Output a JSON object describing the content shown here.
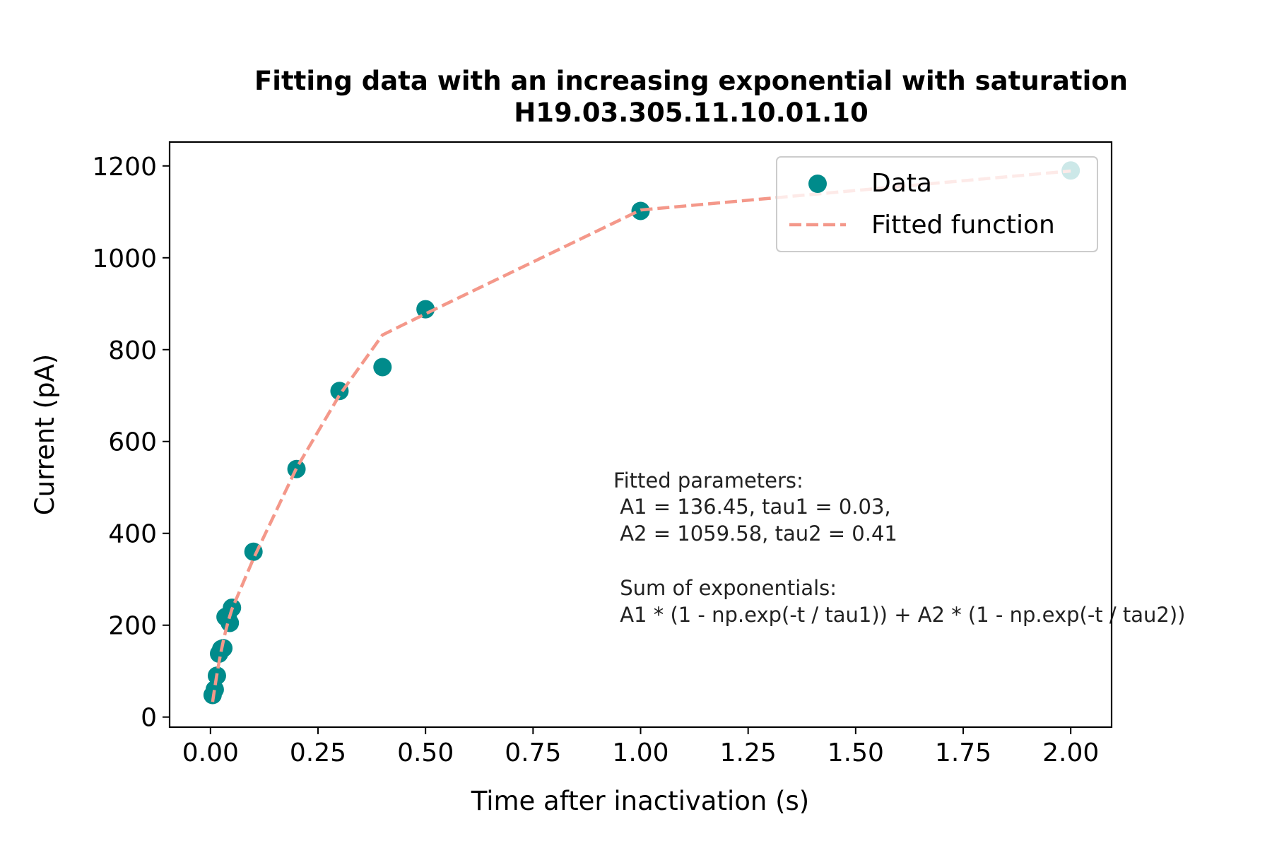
{
  "chart_data": {
    "type": "scatter",
    "title": "Fitting data with an increasing exponential with saturation",
    "subtitle": "H19.03.305.11.10.01.10",
    "xlabel": "Time after inactivation (s)",
    "ylabel": "Current (pA)",
    "xlim": [
      -0.095,
      2.095
    ],
    "ylim": [
      -22,
      1252
    ],
    "xticks": [
      0.0,
      0.25,
      0.5,
      0.75,
      1.0,
      1.25,
      1.5,
      1.75,
      2.0
    ],
    "xtick_labels": [
      "0.00",
      "0.25",
      "0.50",
      "0.75",
      "1.00",
      "1.25",
      "1.50",
      "1.75",
      "2.00"
    ],
    "yticks": [
      0,
      200,
      400,
      600,
      800,
      1000,
      1200
    ],
    "ytick_labels": [
      "0",
      "200",
      "400",
      "600",
      "800",
      "1000",
      "1200"
    ],
    "grid": false,
    "legend_position": "top-right",
    "series": [
      {
        "name": "Data",
        "kind": "scatter",
        "color": "#008b8b",
        "x": [
          0.005,
          0.01,
          0.015,
          0.02,
          0.025,
          0.03,
          0.035,
          0.04,
          0.045,
          0.05,
          0.1,
          0.2,
          0.3,
          0.4,
          0.5,
          1.0,
          2.0
        ],
        "y": [
          48,
          60,
          90,
          138,
          148,
          150,
          218,
          220,
          205,
          238,
          360,
          540,
          710,
          762,
          888,
          1102,
          1190
        ]
      },
      {
        "name": "Fitted function",
        "kind": "line",
        "style": "dashed",
        "color": "#f4988a",
        "x": [
          0.005,
          0.01,
          0.015,
          0.02,
          0.025,
          0.03,
          0.035,
          0.04,
          0.045,
          0.05,
          0.1,
          0.2,
          0.3,
          0.4,
          0.5,
          1.0,
          2.0
        ],
        "y": [
          33,
          64,
          93,
          120,
          144,
          166,
          186,
          204,
          220,
          235,
          345,
          542,
          701,
          832,
          878,
          1104,
          1189
        ]
      }
    ],
    "annotation": {
      "lines": [
        "Fitted parameters:",
        " A1 = 136.45, tau1 = 0.03,",
        " A2 = 1059.58, tau2 = 0.41",
        "",
        " Sum of exponentials:",
        " A1 * (1 - np.exp(-t / tau1)) + A2 * (1 - np.exp(-t / tau2))"
      ]
    }
  }
}
